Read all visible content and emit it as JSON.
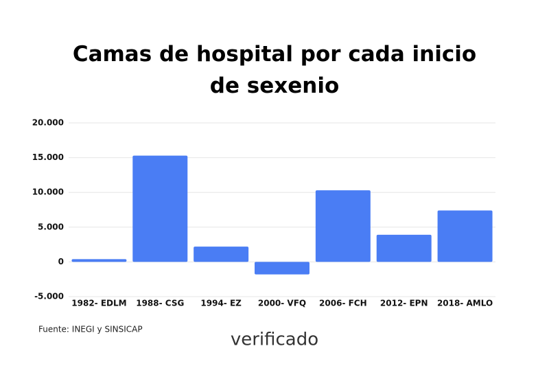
{
  "chart_data": {
    "type": "bar",
    "title": "Camas de hospital por cada inicio de sexenio",
    "categories": [
      "1982- EDLM",
      "1988- CSG",
      "1994- EZ",
      "2000- VFQ",
      "2006- FCH",
      "2012- EPN",
      "2018- AMLO"
    ],
    "values": [
      400,
      15300,
      2200,
      -1800,
      10300,
      3900,
      7400
    ],
    "color": "#4a7df4",
    "ylim": [
      -5000,
      20000
    ],
    "yticks": [
      {
        "value": -5000,
        "label": "-5.000"
      },
      0,
      {
        "value": 5000,
        "label": "5.000"
      },
      {
        "value": 10000,
        "label": "10.000"
      },
      {
        "value": 15000,
        "label": "15.000"
      },
      {
        "value": 20000,
        "label": "20.000"
      }
    ],
    "grid": true,
    "source": "Fuente: INEGI y SINSICAP",
    "brand": "verificado"
  }
}
